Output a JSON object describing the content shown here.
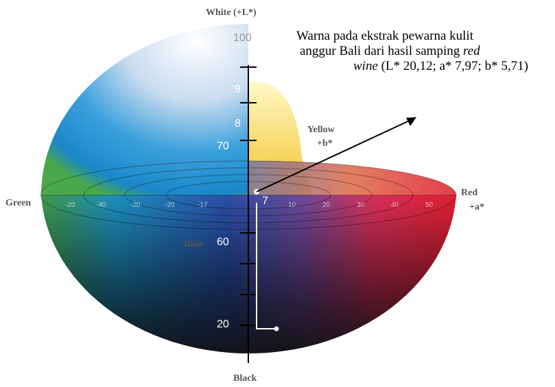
{
  "labels": {
    "white": "White (+L*)",
    "black": "Black",
    "green": "Green",
    "blue": "Blue",
    "yellow": [
      "Yellow",
      "+b*"
    ],
    "red": [
      "Red",
      "+a*"
    ]
  },
  "annotation": {
    "line1": "Warna pada ekstrak pewarna kulit",
    "line2": "anggur Bali dari hasil samping",
    "line2_italic": "red",
    "line3_italic": "wine",
    "line3": "(L* 20,12; a* 7,97; b* 5,71)"
  },
  "scale": {
    "top": [
      "100",
      "9",
      "8"
    ],
    "marks": [
      "70",
      "60",
      "20",
      "7"
    ]
  },
  "axis": [
    "-20",
    "-40",
    "-20",
    "-20",
    "-17",
    "10",
    "20",
    "30",
    "40",
    "50"
  ]
}
